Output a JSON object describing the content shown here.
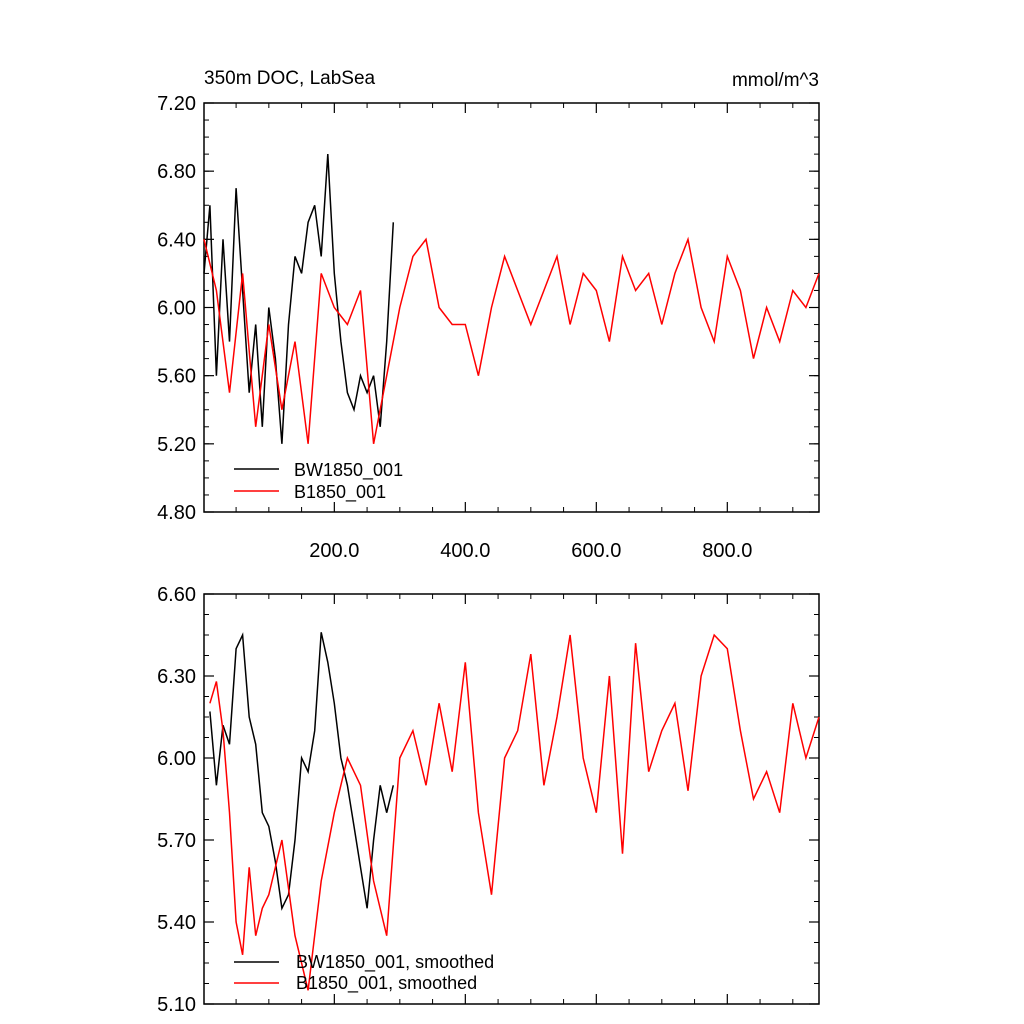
{
  "chart_data": [
    {
      "type": "line",
      "title": "350m DOC, LabSea",
      "units": "mmol/m^3",
      "xlim": [
        1,
        940
      ],
      "ylim": [
        4.8,
        7.2
      ],
      "x_ticks": [
        200,
        400,
        600,
        800
      ],
      "x_tick_labels": [
        "200.0",
        "400.0",
        "600.0",
        "800.0"
      ],
      "y_ticks": [
        4.8,
        5.2,
        5.6,
        6.0,
        6.4,
        6.8,
        7.2
      ],
      "y_tick_labels": [
        "4.80",
        "5.20",
        "5.60",
        "6.00",
        "6.40",
        "6.80",
        "7.20"
      ],
      "legend_position": "bottom-left",
      "series": [
        {
          "name": "BW1850_001",
          "color": "#000000",
          "x": [
            1,
            10,
            20,
            30,
            40,
            50,
            60,
            70,
            80,
            90,
            100,
            110,
            120,
            130,
            140,
            150,
            160,
            170,
            180,
            190,
            200,
            210,
            220,
            230,
            240,
            250,
            260,
            270,
            280,
            290
          ],
          "values": [
            6.2,
            6.6,
            5.6,
            6.4,
            5.8,
            6.7,
            6.1,
            5.5,
            5.9,
            5.3,
            6.0,
            5.7,
            5.2,
            5.9,
            6.3,
            6.2,
            6.5,
            6.6,
            6.3,
            6.9,
            6.2,
            5.8,
            5.5,
            5.4,
            5.6,
            5.5,
            5.6,
            5.3,
            5.8,
            6.5
          ]
        },
        {
          "name": "B1850_001",
          "color": "#ff0000",
          "x": [
            1,
            20,
            40,
            60,
            80,
            100,
            120,
            140,
            160,
            180,
            200,
            220,
            240,
            260,
            280,
            300,
            320,
            340,
            360,
            380,
            400,
            420,
            440,
            460,
            480,
            500,
            520,
            540,
            560,
            580,
            600,
            620,
            640,
            660,
            680,
            700,
            720,
            740,
            760,
            780,
            800,
            820,
            840,
            860,
            880,
            900,
            920,
            940
          ],
          "values": [
            6.4,
            6.1,
            5.5,
            6.2,
            5.3,
            5.9,
            5.4,
            5.8,
            5.2,
            6.2,
            6.0,
            5.9,
            6.1,
            5.2,
            5.6,
            6.0,
            6.3,
            6.4,
            6.0,
            5.9,
            5.9,
            5.6,
            6.0,
            6.3,
            6.1,
            5.9,
            6.1,
            6.3,
            5.9,
            6.2,
            6.1,
            5.8,
            6.3,
            6.1,
            6.2,
            5.9,
            6.2,
            6.4,
            6.0,
            5.8,
            6.3,
            6.1,
            5.7,
            6.0,
            5.8,
            6.1,
            6.0,
            6.2
          ]
        }
      ]
    },
    {
      "type": "line",
      "xlim": [
        1,
        940
      ],
      "ylim": [
        5.1,
        6.6
      ],
      "y_ticks": [
        5.1,
        5.4,
        5.7,
        6.0,
        6.3,
        6.6
      ],
      "y_tick_labels": [
        "5.10",
        "5.40",
        "5.70",
        "6.00",
        "6.30",
        "6.60"
      ],
      "legend_position": "bottom-left",
      "series": [
        {
          "name": "BW1850_001, smoothed",
          "color": "#000000",
          "x": [
            10,
            20,
            30,
            40,
            50,
            60,
            70,
            80,
            90,
            100,
            110,
            120,
            130,
            140,
            150,
            160,
            170,
            180,
            190,
            200,
            210,
            220,
            230,
            240,
            250,
            260,
            270,
            280,
            290
          ],
          "values": [
            6.17,
            5.9,
            6.12,
            6.05,
            6.4,
            6.45,
            6.15,
            6.05,
            5.8,
            5.75,
            5.62,
            5.45,
            5.5,
            5.7,
            6.0,
            5.95,
            6.1,
            6.46,
            6.35,
            6.2,
            6.0,
            5.9,
            5.75,
            5.6,
            5.45,
            5.7,
            5.9,
            5.8,
            5.9
          ]
        },
        {
          "name": "B1850_001, smoothed",
          "color": "#ff0000",
          "x": [
            10,
            20,
            30,
            40,
            50,
            60,
            70,
            80,
            90,
            100,
            120,
            140,
            160,
            180,
            200,
            220,
            240,
            260,
            280,
            300,
            320,
            340,
            360,
            380,
            400,
            420,
            440,
            460,
            480,
            500,
            520,
            540,
            560,
            580,
            600,
            620,
            640,
            660,
            680,
            700,
            720,
            740,
            760,
            780,
            800,
            820,
            840,
            860,
            880,
            900,
            920,
            940
          ],
          "values": [
            6.2,
            6.28,
            6.1,
            5.8,
            5.4,
            5.28,
            5.6,
            5.35,
            5.45,
            5.5,
            5.7,
            5.35,
            5.15,
            5.55,
            5.8,
            6.0,
            5.9,
            5.55,
            5.35,
            6.0,
            6.1,
            5.9,
            6.2,
            5.95,
            6.35,
            5.8,
            5.5,
            6.0,
            6.1,
            6.38,
            5.9,
            6.15,
            6.45,
            6.0,
            5.8,
            6.3,
            5.65,
            6.42,
            5.95,
            6.1,
            6.2,
            5.88,
            6.3,
            6.45,
            6.4,
            6.1,
            5.85,
            5.95,
            5.8,
            6.2,
            6.0,
            6.15
          ]
        }
      ]
    }
  ]
}
